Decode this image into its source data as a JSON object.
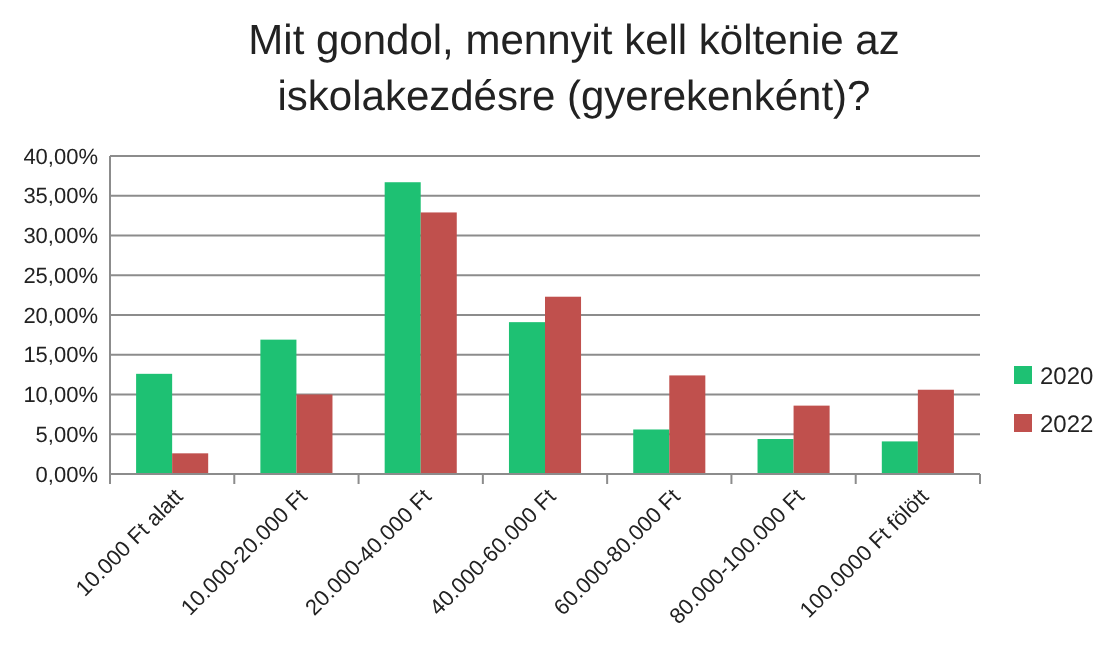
{
  "chart_data": {
    "type": "bar",
    "title": "Mit gondol, mennyit kell költenie az iskolakezdésre (gyerekenként)?",
    "categories": [
      "10.000 Ft alatt",
      "10.000-20.000 Ft",
      "20.000-40.000 Ft",
      "40.000-60.000 Ft",
      "60.000-80.000 Ft",
      "80.000-100.000 Ft",
      "100.0000 Ft fölött"
    ],
    "series": [
      {
        "name": "2020",
        "color": "#1ec173",
        "values": [
          12.6,
          16.9,
          36.7,
          19.1,
          5.6,
          4.4,
          4.1
        ]
      },
      {
        "name": "2022",
        "color": "#c0504d",
        "values": [
          2.6,
          10.0,
          32.9,
          22.3,
          12.4,
          8.6,
          10.6
        ]
      }
    ],
    "ylim": [
      0,
      40
    ],
    "yticks": [
      {
        "value": 0,
        "label": "0,00%"
      },
      {
        "value": 5,
        "label": "5,00%"
      },
      {
        "value": 10,
        "label": "10,00%"
      },
      {
        "value": 15,
        "label": "15,00%"
      },
      {
        "value": 20,
        "label": "20,00%"
      },
      {
        "value": 25,
        "label": "25,00%"
      },
      {
        "value": 30,
        "label": "30,00%"
      },
      {
        "value": 35,
        "label": "35,00%"
      },
      {
        "value": 40,
        "label": "40,00%"
      }
    ],
    "grid": "y",
    "legend": "right"
  }
}
